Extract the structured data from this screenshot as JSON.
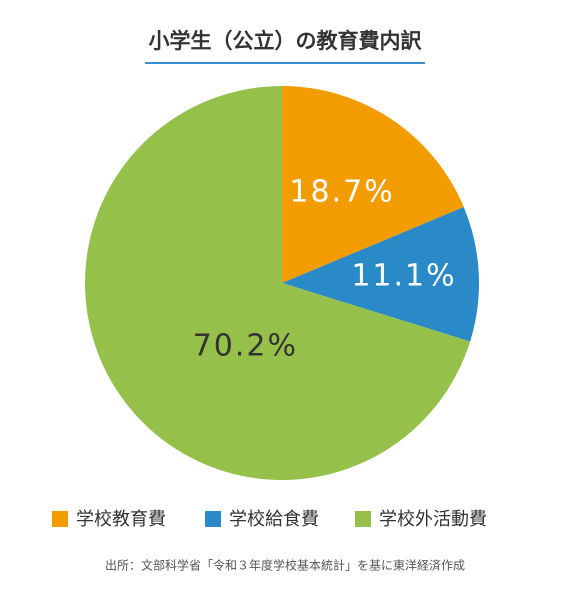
{
  "chart_data": {
    "type": "pie",
    "title": "小学生（公立）の教育費内訳",
    "categories": [
      "学校教育費",
      "学校給食費",
      "学校外活動費"
    ],
    "values": [
      18.7,
      11.1,
      70.2
    ],
    "value_labels": [
      "18.7%",
      "11.1%",
      "70.2%"
    ],
    "colors": [
      "#f39c00",
      "#2a8ac8",
      "#95c14b"
    ],
    "legend": "bottom",
    "source": "出所：文部科学省「令和３年度学校基本統計」を基に東洋経済作成"
  }
}
